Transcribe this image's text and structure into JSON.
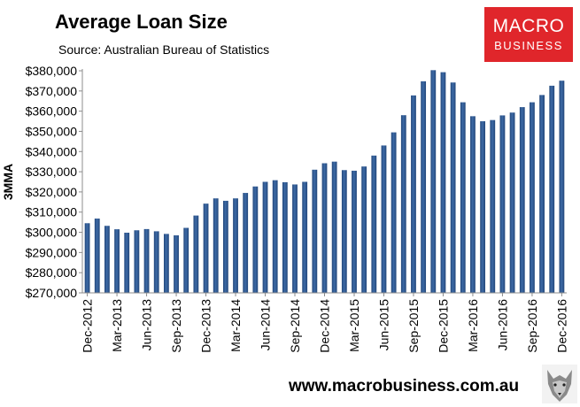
{
  "header": {
    "title": "Average Loan Size",
    "subtitle": "Source: Australian Bureau of Statistics"
  },
  "logo": {
    "line1": "MACRO",
    "line2": "BUSINESS"
  },
  "footer": {
    "website": "www.macrobusiness.com.au"
  },
  "colors": {
    "bar": "#3d6aa6",
    "bar_dark": "#23477a",
    "logo_red": "#e0262b",
    "axis": "#8c8c8c"
  },
  "chart_data": {
    "type": "bar",
    "title": "Average Loan Size",
    "ylabel": "3MMA",
    "ylim": [
      270000,
      380000
    ],
    "yticks": [
      270000,
      280000,
      290000,
      300000,
      310000,
      320000,
      330000,
      340000,
      350000,
      360000,
      370000,
      380000
    ],
    "ytick_labels": [
      "$270,000",
      "$280,000",
      "$290,000",
      "$300,000",
      "$310,000",
      "$320,000",
      "$330,000",
      "$340,000",
      "$350,000",
      "$360,000",
      "$370,000",
      "$380,000"
    ],
    "x_tick_labels": [
      "Dec-2012",
      "Mar-2013",
      "Jun-2013",
      "Sep-2013",
      "Dec-2013",
      "Mar-2014",
      "Jun-2014",
      "Sep-2014",
      "Dec-2014",
      "Mar-2015",
      "Jun-2015",
      "Sep-2015",
      "Dec-2015",
      "Mar-2016",
      "Jun-2016",
      "Sep-2016",
      "Dec-2016"
    ],
    "label_every": 3,
    "categories": [
      "Dec-2012",
      "Jan-2013",
      "Feb-2013",
      "Mar-2013",
      "Apr-2013",
      "May-2013",
      "Jun-2013",
      "Jul-2013",
      "Aug-2013",
      "Sep-2013",
      "Oct-2013",
      "Nov-2013",
      "Dec-2013",
      "Jan-2014",
      "Feb-2014",
      "Mar-2014",
      "Apr-2014",
      "May-2014",
      "Jun-2014",
      "Jul-2014",
      "Aug-2014",
      "Sep-2014",
      "Oct-2014",
      "Nov-2014",
      "Dec-2014",
      "Jan-2015",
      "Feb-2015",
      "Mar-2015",
      "Apr-2015",
      "May-2015",
      "Jun-2015",
      "Jul-2015",
      "Aug-2015",
      "Sep-2015",
      "Oct-2015",
      "Nov-2015",
      "Dec-2015",
      "Jan-2016",
      "Feb-2016",
      "Mar-2016",
      "Apr-2016",
      "May-2016",
      "Jun-2016",
      "Jul-2016",
      "Aug-2016",
      "Sep-2016",
      "Oct-2016",
      "Nov-2016",
      "Dec-2016"
    ],
    "values": [
      304500,
      306800,
      303200,
      301500,
      299800,
      301000,
      301600,
      300500,
      299200,
      298500,
      302200,
      308300,
      314200,
      316800,
      315600,
      316800,
      319500,
      322700,
      325000,
      325800,
      324800,
      323700,
      325000,
      331000,
      334200,
      335000,
      330800,
      330500,
      332600,
      338000,
      343000,
      349500,
      358000,
      367800,
      374800,
      380300,
      379300,
      374200,
      364400,
      357500,
      355000,
      355600,
      357900,
      359300,
      362000,
      364400,
      368000,
      372600,
      375100
    ],
    "grid": false,
    "legend": "none"
  }
}
